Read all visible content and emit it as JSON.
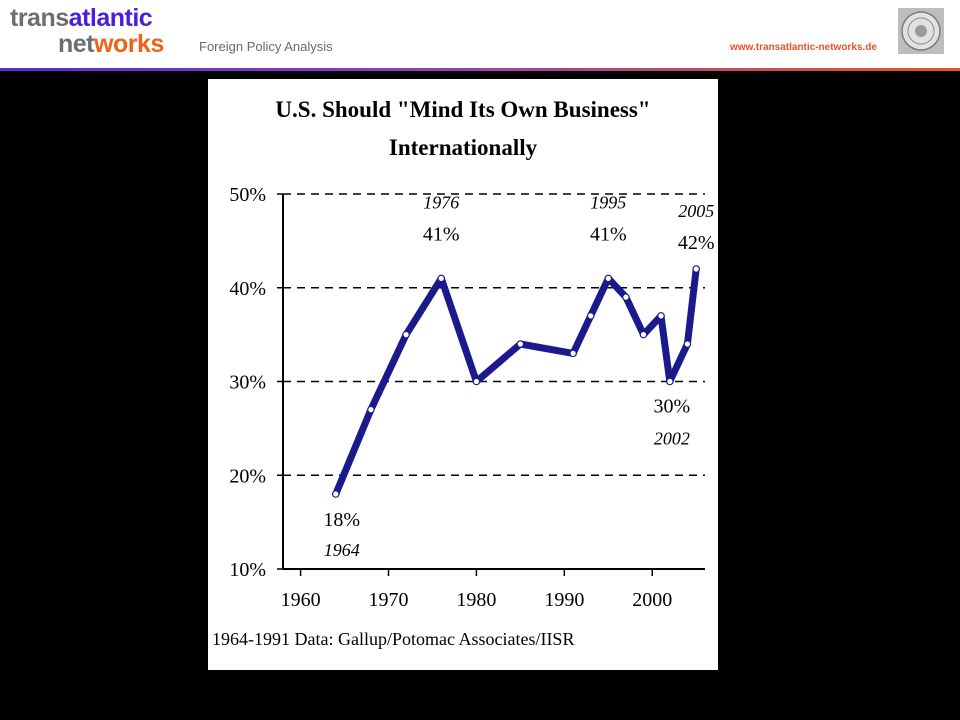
{
  "header": {
    "logo": {
      "line1_part1": "trans",
      "line1_part2": "atlantic",
      "line2_part1": "net",
      "line2_part2": "works"
    },
    "subtitle": "Foreign Policy Analysis",
    "url": "www.transatlantic-networks.de",
    "seal_icon": "seal-icon"
  },
  "colors": {
    "logo_gray": "#6d6d6d",
    "logo_purple": "#4b1fd6",
    "logo_orange": "#ee6417",
    "url": "#e2552a",
    "series_line": "#1a1a8c",
    "background": "#000000"
  },
  "chart_data": {
    "type": "line",
    "title_line1": "U.S. Should \"Mind Its Own Business\"",
    "title_line2": "Internationally",
    "xlabel": "",
    "ylabel": "",
    "xlim": [
      1958,
      2006
    ],
    "ylim": [
      10,
      50
    ],
    "x_ticks": [
      1960,
      1970,
      1980,
      1990,
      2000
    ],
    "x_tick_labels": [
      "1960",
      "1970",
      "1980",
      "1990",
      "2000"
    ],
    "y_ticks": [
      10,
      20,
      30,
      40,
      50
    ],
    "y_tick_labels": [
      "10%",
      "20%",
      "30%",
      "40%",
      "50%"
    ],
    "grid": "dashed horizontal at 20%, 30%, 40%, 50%",
    "series": [
      {
        "x": [
          1964,
          1968,
          1972,
          1976,
          1980,
          1985,
          1991,
          1993,
          1995,
          1997,
          1999,
          2001,
          2002,
          2004,
          2005
        ],
        "values": [
          18,
          27,
          35,
          41,
          30,
          34,
          33,
          37,
          41,
          39,
          35,
          37,
          30,
          34,
          42
        ]
      }
    ],
    "annotations": [
      {
        "value": "18%",
        "year": "1964"
      },
      {
        "value": "41%",
        "year": "1976"
      },
      {
        "value": "41%",
        "year": "1995"
      },
      {
        "value": "42%",
        "year": "2005"
      },
      {
        "value": "30%",
        "year": "2002"
      }
    ],
    "source": "1964-1991 Data: Gallup/Potomac Associates/IISR"
  }
}
